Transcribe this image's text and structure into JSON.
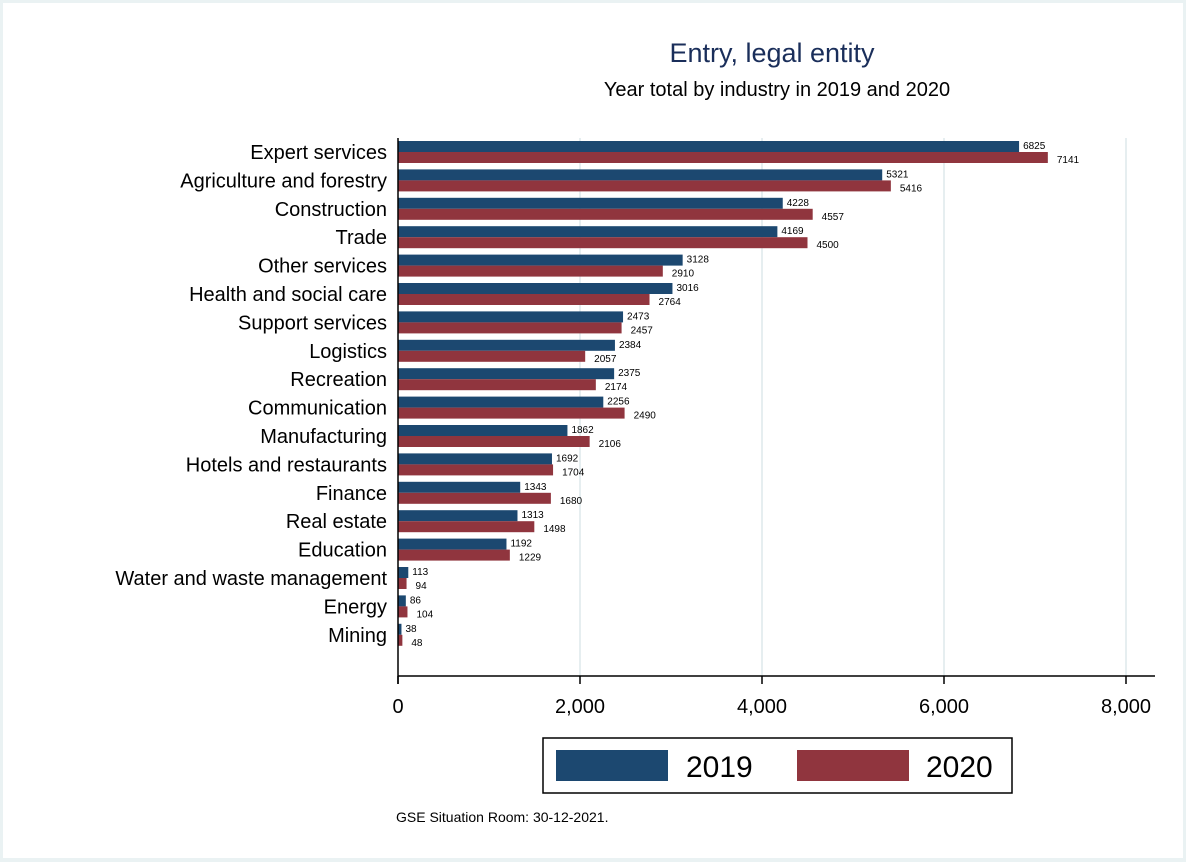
{
  "chart_data": {
    "type": "bar",
    "orientation": "horizontal",
    "title": "Entry, legal entity",
    "subtitle": "Year total by industry in 2019 and 2020",
    "xlabel": "",
    "ylabel": "",
    "xlim": [
      0,
      8000
    ],
    "x_ticks": [
      0,
      2000,
      4000,
      6000,
      8000
    ],
    "x_tick_labels": [
      "0",
      "2,000",
      "4,000",
      "6,000",
      "8,000"
    ],
    "grid": true,
    "legend_position": "bottom",
    "categories": [
      "Expert services",
      "Agriculture and forestry",
      "Construction",
      "Trade",
      "Other services",
      "Health and social care",
      "Support services",
      "Logistics",
      "Recreation",
      "Communication",
      "Manufacturing",
      "Hotels and restaurants",
      "Finance",
      "Real estate",
      "Education",
      "Water and waste management",
      "Energy",
      "Mining"
    ],
    "series": [
      {
        "name": "2019",
        "color": "#1c4870",
        "values": [
          6825,
          5321,
          4228,
          4169,
          3128,
          3016,
          2473,
          2384,
          2375,
          2256,
          1862,
          1692,
          1343,
          1313,
          1192,
          113,
          86,
          38
        ]
      },
      {
        "name": "2020",
        "color": "#90353e",
        "values": [
          7141,
          5416,
          4557,
          4500,
          2910,
          2764,
          2457,
          2057,
          2174,
          2490,
          2106,
          1704,
          1680,
          1498,
          1229,
          94,
          104,
          48
        ]
      }
    ],
    "note": "GSE Situation Room: 30-12-2021."
  }
}
